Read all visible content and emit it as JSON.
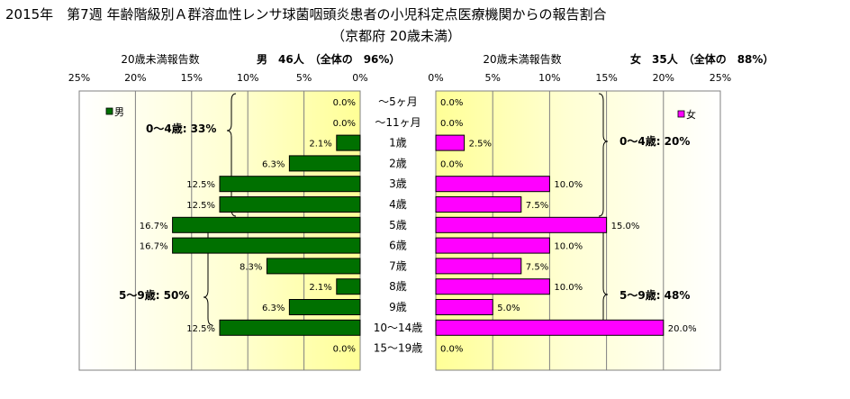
{
  "title_line1": "2015年　第7週 年齢階級別Ａ群溶血性レンサ球菌咽頭炎患者の小児科定点医療機関からの報告割合",
  "title_line2": "（京都府 20歳未満）",
  "chart_data": [
    {
      "type": "bar",
      "orientation": "horizontal",
      "direction": "right-to-left",
      "header_left": "20歳未満報告数",
      "header_right": "男　46人　（全体の　96%）",
      "legend": "男",
      "legend_position": "top-left",
      "color": "#007000",
      "xlim": [
        0,
        25
      ],
      "xticks": [
        "25%",
        "20%",
        "15%",
        "10%",
        "5%",
        "0%"
      ],
      "categories": [
        "～5ヶ月",
        "～11ヶ月",
        "1歳",
        "2歳",
        "3歳",
        "4歳",
        "5歳",
        "6歳",
        "7歳",
        "8歳",
        "9歳",
        "10～14歳",
        "15～19歳"
      ],
      "values": [
        0.0,
        0.0,
        2.1,
        6.3,
        12.5,
        12.5,
        16.7,
        16.7,
        8.3,
        2.1,
        6.3,
        12.5,
        0.0
      ],
      "labels": [
        "0.0%",
        "0.0%",
        "2.1%",
        "6.3%",
        "12.5%",
        "12.5%",
        "16.7%",
        "16.7%",
        "8.3%",
        "2.1%",
        "6.3%",
        "12.5%",
        "0.0%"
      ],
      "annotations": [
        "0～4歳: 33%",
        "5～9歳: 50%"
      ]
    },
    {
      "type": "bar",
      "orientation": "horizontal",
      "direction": "left-to-right",
      "header_left": "20歳未満報告数",
      "header_right": "女　35人　（全体の　88%）",
      "legend": "女",
      "legend_position": "top-right",
      "color": "#ff00ff",
      "xlim": [
        0,
        25
      ],
      "xticks": [
        "0%",
        "5%",
        "10%",
        "15%",
        "20%",
        "25%"
      ],
      "categories": [
        "～5ヶ月",
        "～11ヶ月",
        "1歳",
        "2歳",
        "3歳",
        "4歳",
        "5歳",
        "6歳",
        "7歳",
        "8歳",
        "9歳",
        "10～14歳",
        "15～19歳"
      ],
      "values": [
        0.0,
        0.0,
        2.5,
        0.0,
        10.0,
        7.5,
        15.0,
        10.0,
        7.5,
        10.0,
        5.0,
        20.0,
        0.0
      ],
      "labels": [
        "0.0%",
        "0.0%",
        "2.5%",
        "0.0%",
        "10.0%",
        "7.5%",
        "15.0%",
        "10.0%",
        "7.5%",
        "10.0%",
        "5.0%",
        "20.0%",
        "0.0%"
      ],
      "annotations": [
        "0～4歳: 20%",
        "5～9歳: 48%"
      ]
    }
  ]
}
